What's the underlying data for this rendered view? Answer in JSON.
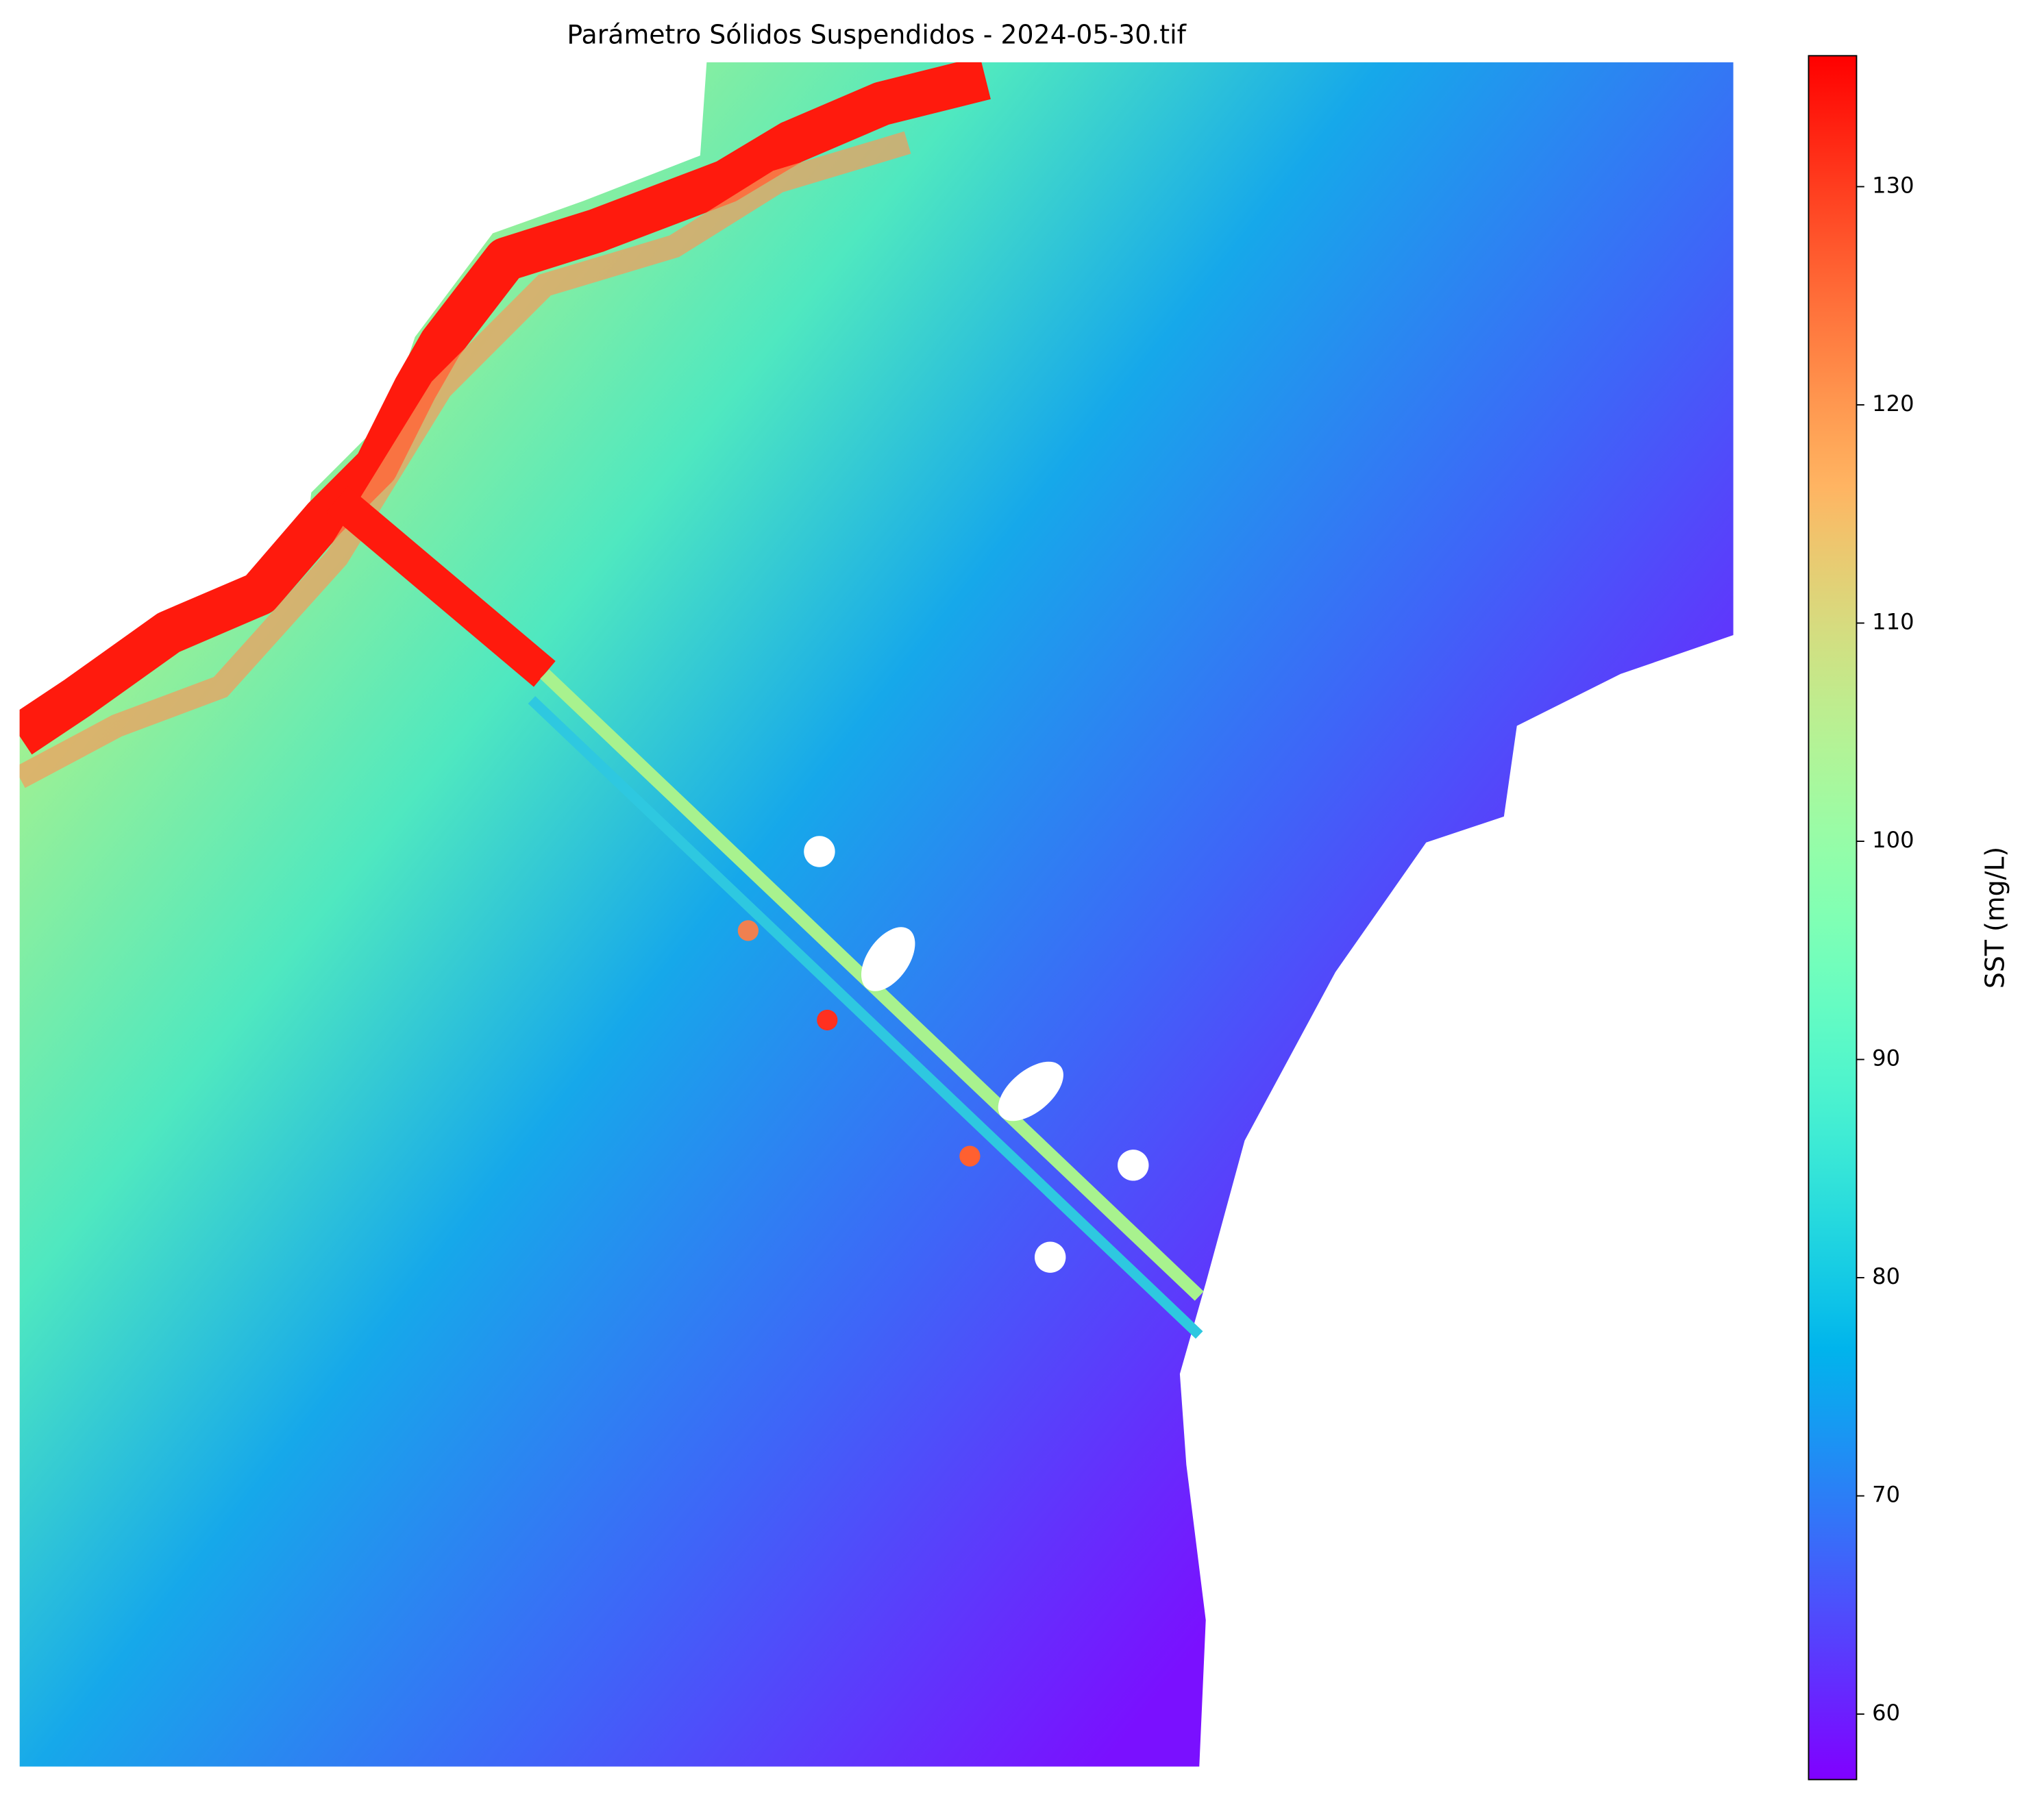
{
  "chart_data": {
    "type": "raster",
    "title": "Parámetro Sólidos Suspendidos - 2024-05-30.tif",
    "colorbar_label": "SST (mg/L)",
    "colormap": "rainbow",
    "clim": [
      57,
      136
    ],
    "cticks": [
      60,
      70,
      80,
      90,
      100,
      110,
      120,
      130
    ]
  }
}
